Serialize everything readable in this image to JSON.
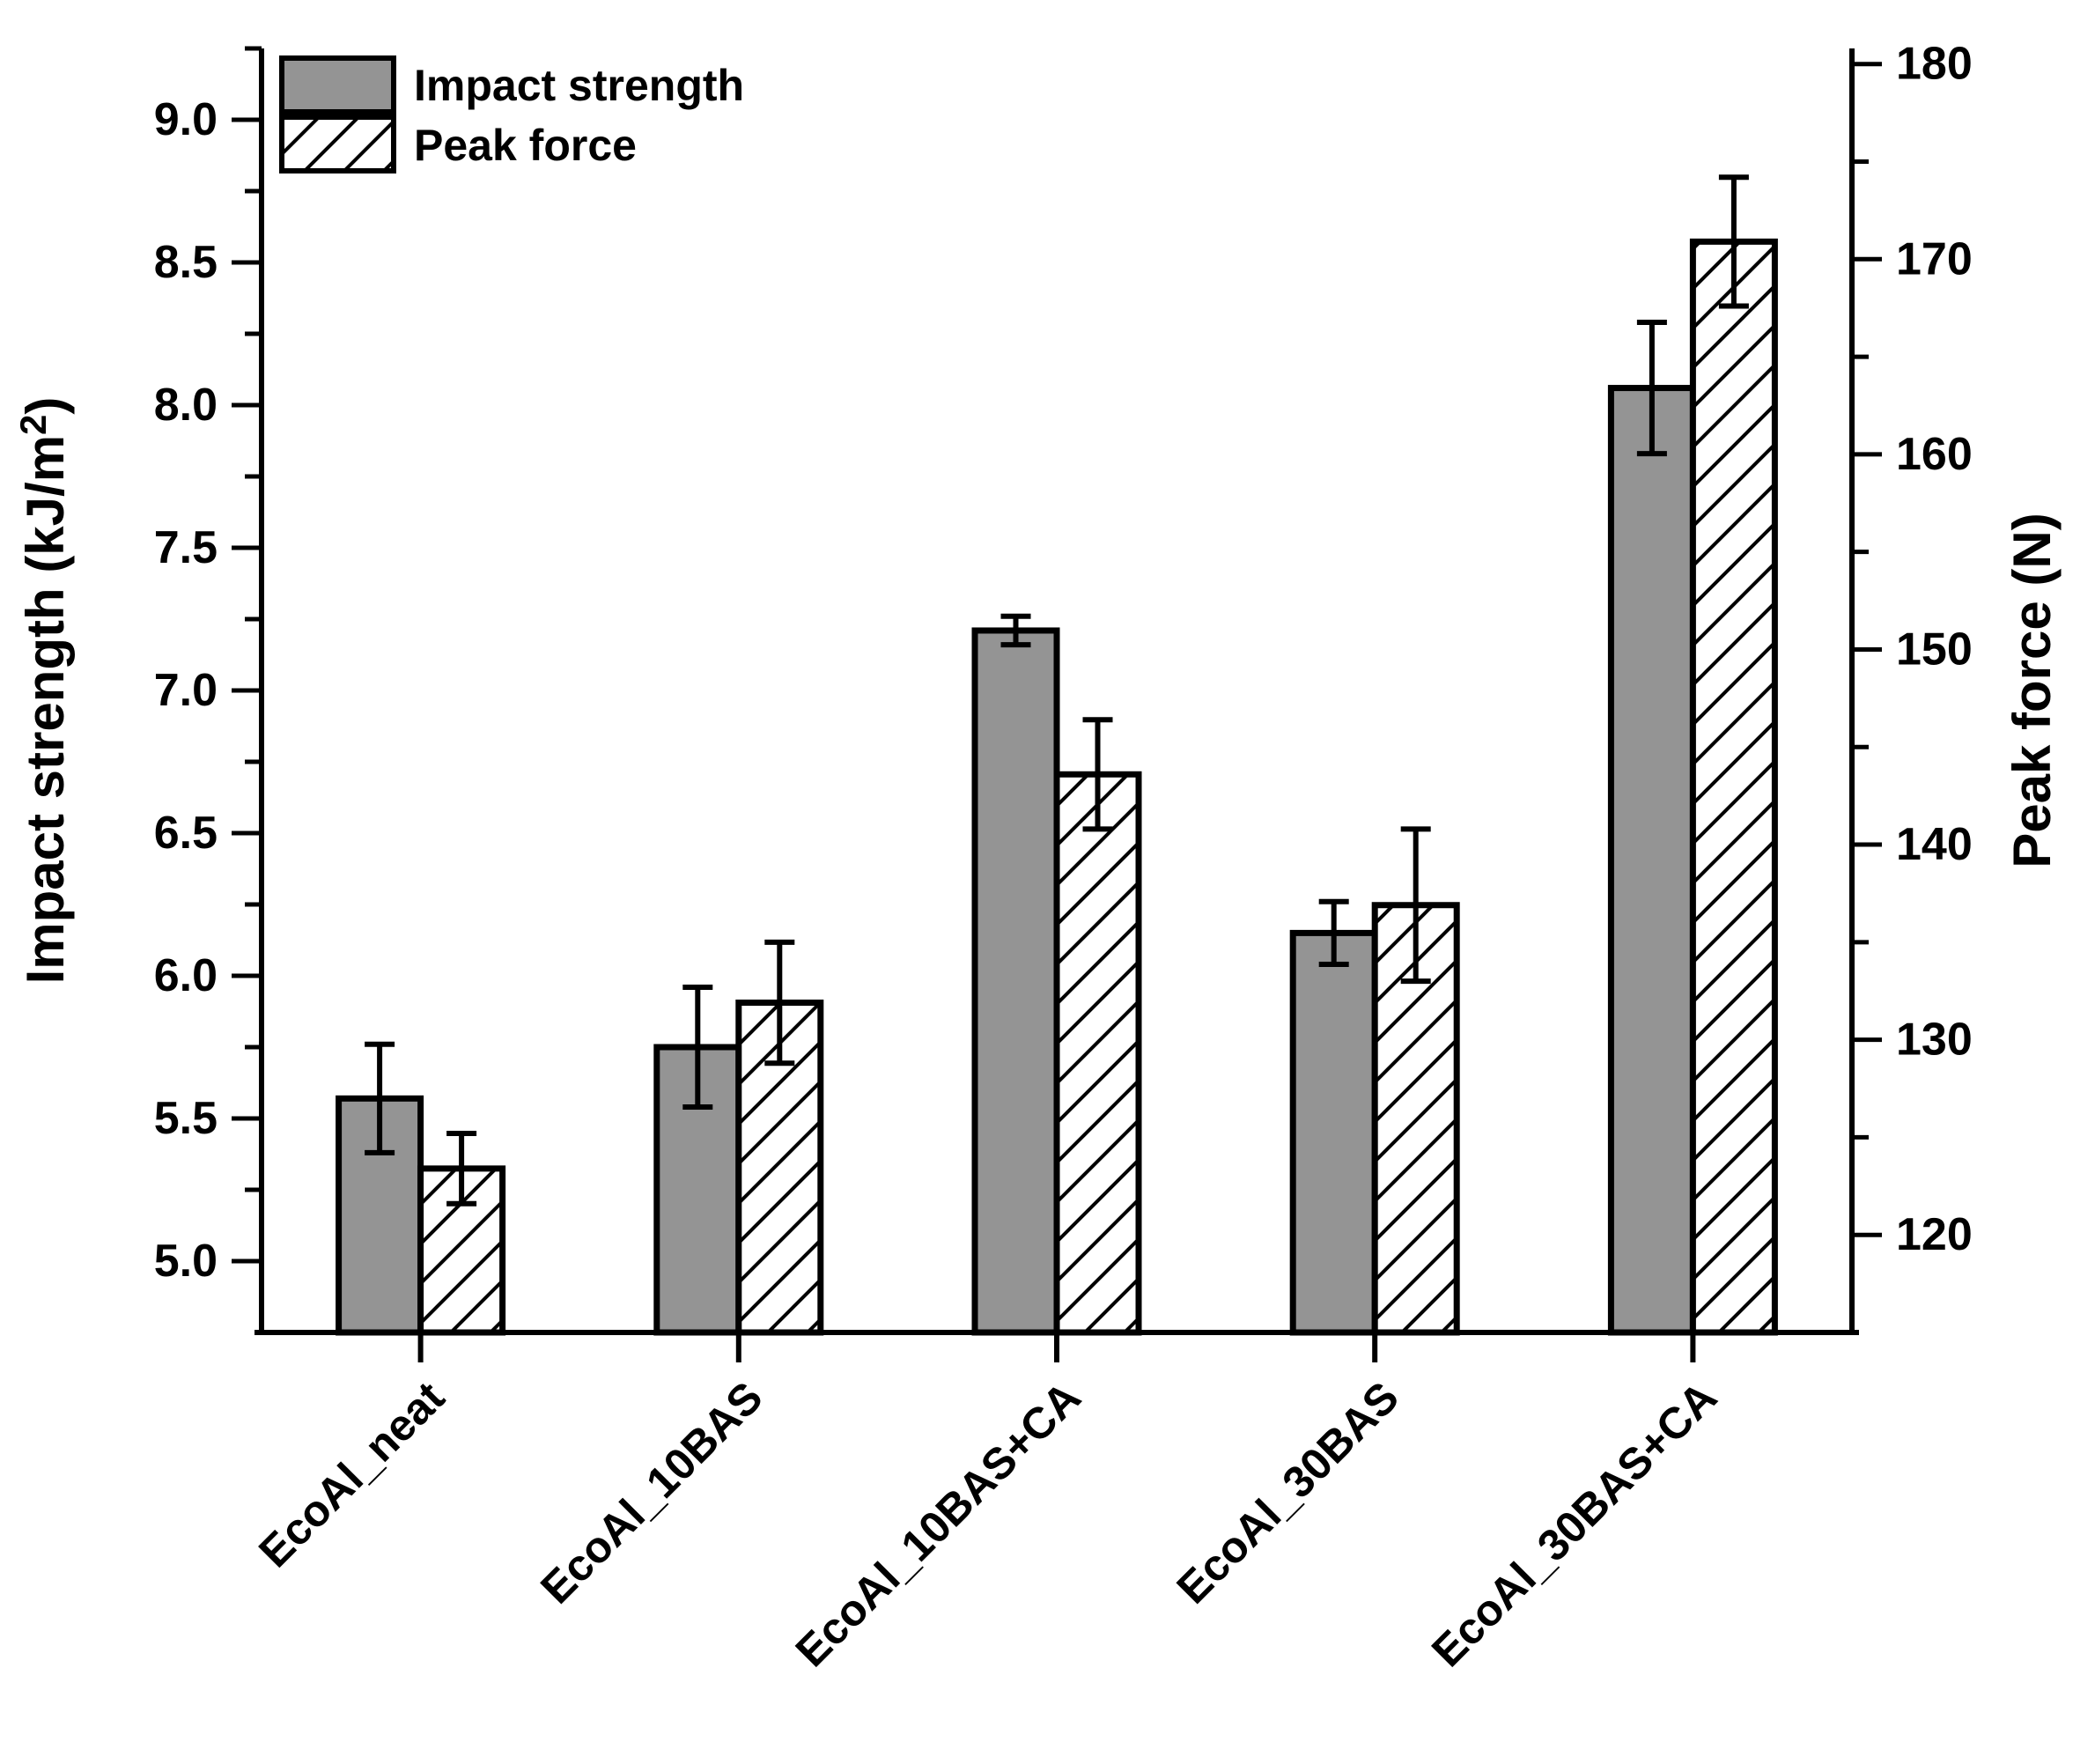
{
  "figure": {
    "background": "#ffffff",
    "stroke_color": "#000000"
  },
  "chart_data": {
    "type": "bar",
    "dual_axis": true,
    "grid": false,
    "legend_position": "top-left",
    "categories": [
      "EcoAl_neat",
      "EcoAl_10BAS",
      "EcoAl_10BAS+CA",
      "EcoAl_30BAS",
      "EcoAl_30BAS+CA"
    ],
    "series": [
      {
        "name": "Impact strength",
        "axis": "left",
        "style": "solid-gray",
        "fill": "#949494",
        "values": [
          5.57,
          5.75,
          7.21,
          6.15,
          8.06
        ],
        "errors": [
          0.19,
          0.21,
          0.05,
          0.11,
          0.23
        ]
      },
      {
        "name": "Peak force",
        "axis": "right",
        "style": "hatched-diagonal",
        "fill": "#ffffff",
        "values": [
          123.4,
          131.9,
          143.6,
          136.9,
          170.9
        ],
        "errors": [
          1.8,
          3.1,
          2.8,
          3.9,
          3.3
        ]
      }
    ],
    "left_axis": {
      "label_plain": "Impact strength (kJ/m²)",
      "label_main": "Impact strength (kJ/m",
      "label_sup": "2",
      "label_close": ")",
      "min": 4.75,
      "max": 9.25,
      "major_ticks": [
        5.0,
        5.5,
        6.0,
        6.5,
        7.0,
        7.5,
        8.0,
        8.5,
        9.0
      ],
      "tick_labels": [
        "5.0",
        "5.5",
        "6.0",
        "6.5",
        "7.0",
        "7.5",
        "8.0",
        "8.5",
        "9.0"
      ],
      "minor_ticks": [
        5.25,
        5.75,
        6.25,
        6.75,
        7.25,
        7.75,
        8.25,
        8.75,
        9.25
      ]
    },
    "right_axis": {
      "label": "Peak force (N)",
      "min": 115,
      "max": 180.8,
      "major_ticks": [
        120,
        130,
        140,
        150,
        160,
        170,
        180
      ],
      "tick_labels": [
        "120",
        "130",
        "140",
        "150",
        "160",
        "170",
        "180"
      ],
      "minor_ticks": [
        125,
        135,
        145,
        155,
        165,
        175
      ]
    }
  }
}
